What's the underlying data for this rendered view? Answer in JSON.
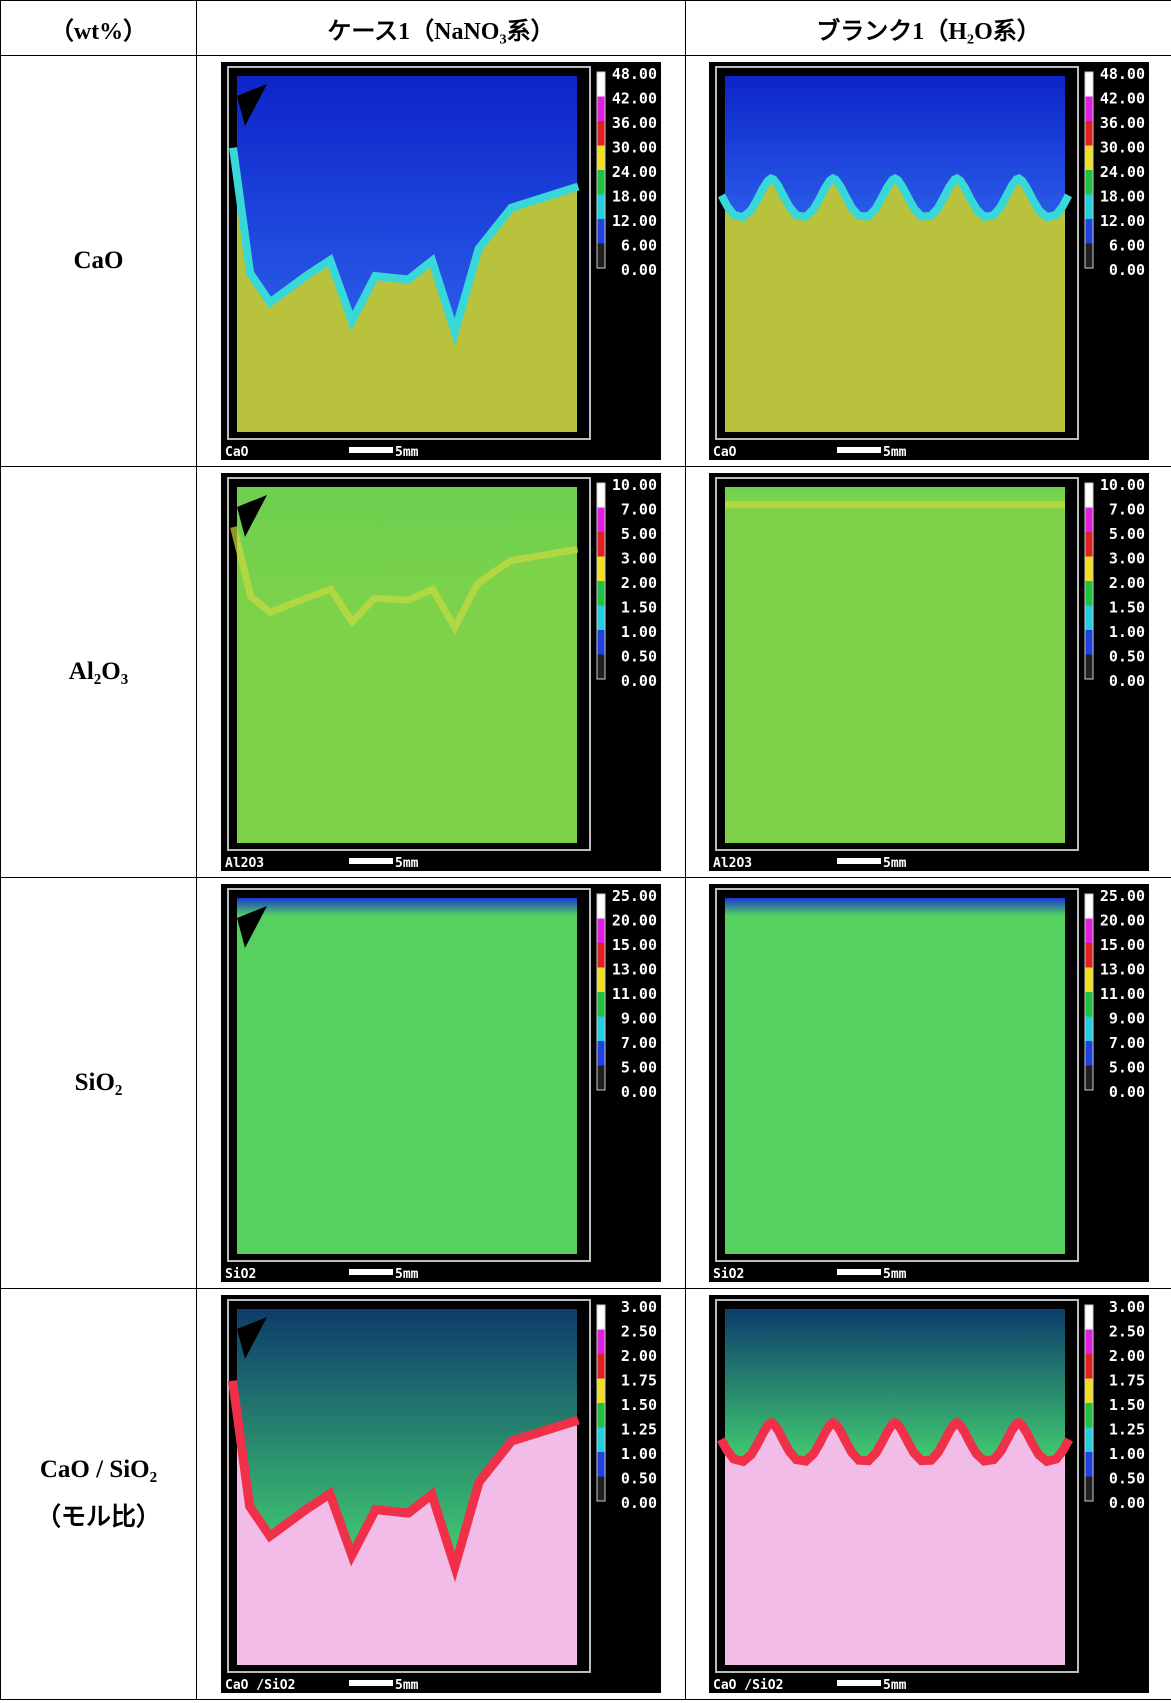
{
  "table": {
    "header": [
      "（wt%）",
      "ケース1（NaNO₃系）",
      "ブランク1（H₂O系）"
    ],
    "rows": [
      {
        "label": [
          "CaO"
        ],
        "maps": [
          {
            "scale": [
              "48.00",
              "42.00",
              "36.00",
              "30.00",
              "24.00",
              "18.00",
              "12.00",
              "6.00",
              "0.00"
            ],
            "caption": "CaO",
            "bar": "5mm"
          },
          {
            "scale": [
              "48.00",
              "42.00",
              "36.00",
              "30.00",
              "24.00",
              "18.00",
              "12.00",
              "6.00",
              "0.00"
            ],
            "caption": "CaO",
            "bar": "5mm"
          }
        ]
      },
      {
        "label": [
          "Al₂O₃"
        ],
        "maps": [
          {
            "scale": [
              "10.00",
              "7.00",
              "5.00",
              "3.00",
              "2.00",
              "1.50",
              "1.00",
              "0.50",
              "0.00"
            ],
            "caption": "Al2O3",
            "bar": "5mm"
          },
          {
            "scale": [
              "10.00",
              "7.00",
              "5.00",
              "3.00",
              "2.00",
              "1.50",
              "1.00",
              "0.50",
              "0.00"
            ],
            "caption": "Al2O3",
            "bar": "5mm"
          }
        ]
      },
      {
        "label": [
          "SiO₂"
        ],
        "maps": [
          {
            "scale": [
              "25.00",
              "20.00",
              "15.00",
              "13.00",
              "11.00",
              "9.00",
              "7.00",
              "5.00",
              "0.00"
            ],
            "caption": "SiO2",
            "bar": "5mm"
          },
          {
            "scale": [
              "25.00",
              "20.00",
              "15.00",
              "13.00",
              "11.00",
              "9.00",
              "7.00",
              "5.00",
              "0.00"
            ],
            "caption": "SiO2",
            "bar": "5mm"
          }
        ]
      },
      {
        "label": [
          "CaO / SiO₂",
          "（モル比）"
        ],
        "maps": [
          {
            "scale": [
              "3.00",
              "2.50",
              "2.00",
              "1.75",
              "1.50",
              "1.25",
              "1.00",
              "0.50",
              "0.00"
            ],
            "caption": "CaO /SiO2",
            "bar": "5mm"
          },
          {
            "scale": [
              "3.00",
              "2.50",
              "2.00",
              "1.75",
              "1.50",
              "1.25",
              "1.00",
              "0.50",
              "0.00"
            ],
            "caption": "CaO /SiO2",
            "bar": "5mm"
          }
        ]
      }
    ]
  }
}
